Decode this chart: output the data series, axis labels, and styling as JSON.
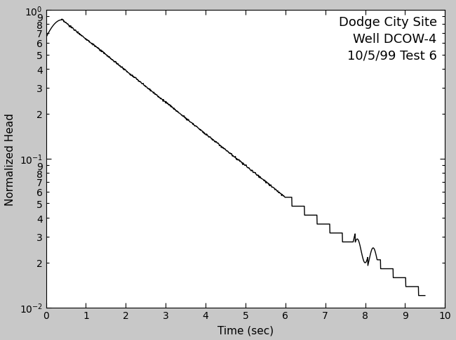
{
  "title_line1": "Dodge City Site",
  "title_line2": "Well DCOW-4",
  "title_line3": "10/5/99 Test 6",
  "xlabel": "Time (sec)",
  "ylabel": "Normalized Head",
  "xlim": [
    0,
    10
  ],
  "ylim": [
    0.01,
    1.5
  ],
  "plot_ylim": [
    0.01,
    1.0
  ],
  "background_color": "#ffffff",
  "fig_facecolor": "#c8c8c8",
  "line_color": "#000000",
  "line_width": 1.0,
  "title_fontsize": 13,
  "label_fontsize": 11,
  "tick_fontsize": 10
}
